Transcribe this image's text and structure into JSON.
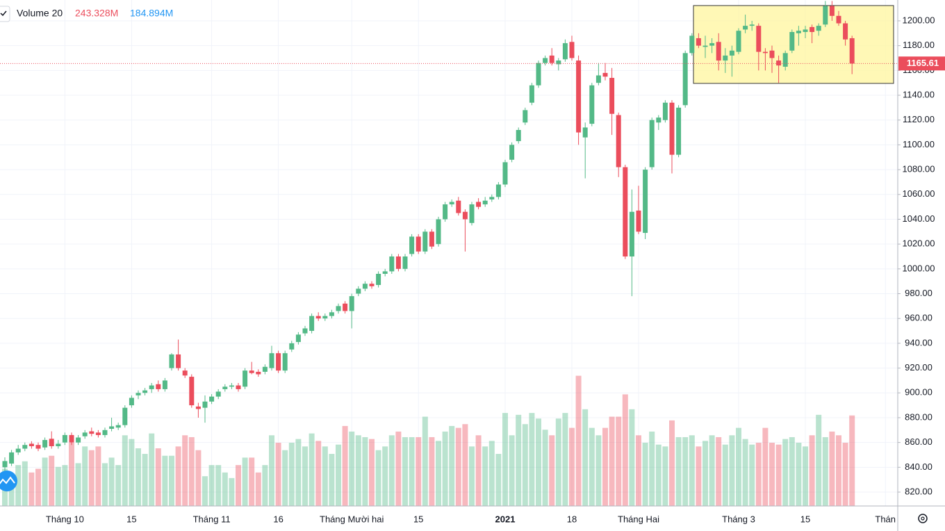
{
  "chart_data": {
    "type": "candlestick",
    "up_color": "#53b987",
    "down_color": "#eb4d5c",
    "volume_up_color": "#53b987",
    "volume_down_color": "#eb4d5c",
    "volume_opacity": 0.4,
    "grid": true,
    "volume_legend": {
      "name": "Volume 20",
      "values": [
        243.328,
        184.894
      ],
      "value_labels": [
        "243.328M",
        "184.894M"
      ]
    },
    "last_price": 1165.61,
    "ylim": [
      808.8,
      1216.8
    ],
    "vlim": [
      0,
      1360
    ],
    "yticks": [
      {
        "value": 820,
        "label": "820.00"
      },
      {
        "value": 840,
        "label": "840.00"
      },
      {
        "value": 860,
        "label": "860.00"
      },
      {
        "value": 880,
        "label": "880.00"
      },
      {
        "value": 900,
        "label": "900.00"
      },
      {
        "value": 920,
        "label": "920.00"
      },
      {
        "value": 940,
        "label": "940.00"
      },
      {
        "value": 960,
        "label": "960.00"
      },
      {
        "value": 980,
        "label": "980.00"
      },
      {
        "value": 1000,
        "label": "1000.00"
      },
      {
        "value": 1020,
        "label": "1020.00"
      },
      {
        "value": 1040,
        "label": "1040.00"
      },
      {
        "value": 1060,
        "label": "1060.00"
      },
      {
        "value": 1080,
        "label": "1080.00"
      },
      {
        "value": 1100,
        "label": "1100.00"
      },
      {
        "value": 1120,
        "label": "1120.00"
      },
      {
        "value": 1140,
        "label": "1140.00"
      },
      {
        "value": 1160,
        "label": "1160.00"
      },
      {
        "value": 1180,
        "label": "1180.00"
      },
      {
        "value": 1200,
        "label": "1200.00"
      }
    ],
    "xticks": [
      {
        "value": 9,
        "label": "Tháng 10"
      },
      {
        "value": 19,
        "label": "15"
      },
      {
        "value": 31,
        "label": "Tháng 11"
      },
      {
        "value": 41,
        "label": "16"
      },
      {
        "value": 52,
        "label": "Tháng Mười hai"
      },
      {
        "value": 62,
        "label": "15"
      },
      {
        "value": 75,
        "label": "2021"
      },
      {
        "value": 85,
        "label": "18"
      },
      {
        "value": 95,
        "label": "Tháng Hai"
      },
      {
        "value": 110,
        "label": "Tháng 3"
      },
      {
        "value": 120,
        "label": "15"
      },
      {
        "value": 132,
        "label": "Thán"
      }
    ],
    "open": [
      840,
      843,
      852,
      855,
      859,
      858,
      856,
      863,
      857,
      860,
      866,
      860,
      865,
      869,
      868,
      866,
      871,
      872,
      874,
      890,
      898,
      900,
      903,
      907,
      903,
      920,
      931,
      918,
      913,
      889,
      888,
      893,
      897,
      903,
      905,
      906,
      905,
      918,
      917,
      917,
      920,
      932,
      918,
      935,
      941,
      948,
      950,
      962,
      960,
      962,
      966,
      972,
      966,
      980,
      984,
      988,
      987,
      996,
      998,
      1010,
      1000,
      1012,
      1026,
      1014,
      1030,
      1020,
      1040,
      1052,
      1055,
      1046,
      1037,
      1054,
      1052,
      1056,
      1058,
      1068,
      1088,
      1103,
      1118,
      1134,
      1148,
      1166,
      1172,
      1165,
      1169,
      1183,
      1168,
      1106,
      1117,
      1150,
      1158,
      1154,
      1124,
      1082,
      1010,
      1047,
      1029,
      1082,
      1118,
      1120,
      1134,
      1092,
      1132,
      1174,
      1186,
      1179,
      1180,
      1183,
      1168,
      1172,
      1175,
      1193,
      1196,
      1196,
      1175,
      1176,
      1168,
      1163,
      1176,
      1190,
      1191,
      1195,
      1192,
      1197,
      1212,
      1204,
      1198,
      1186
    ],
    "high": [
      848,
      854,
      858,
      860,
      861,
      860,
      864,
      869,
      862,
      868,
      868,
      866,
      870,
      872,
      870,
      872,
      880,
      876,
      890,
      898,
      902,
      904,
      908,
      910,
      912,
      932,
      943,
      920,
      915,
      892,
      898,
      899,
      903,
      907,
      908,
      908,
      920,
      925,
      919,
      923,
      938,
      934,
      934,
      942,
      949,
      954,
      964,
      965,
      964,
      967,
      972,
      974,
      980,
      986,
      990,
      990,
      998,
      1000,
      1012,
      1012,
      1012,
      1028,
      1028,
      1032,
      1032,
      1042,
      1054,
      1056,
      1058,
      1048,
      1054,
      1057,
      1058,
      1060,
      1070,
      1088,
      1102,
      1114,
      1130,
      1150,
      1168,
      1172,
      1178,
      1170,
      1185,
      1188,
      1172,
      1118,
      1150,
      1166,
      1166,
      1162,
      1126,
      1084,
      1064,
      1067,
      1082,
      1122,
      1124,
      1136,
      1136,
      1132,
      1176,
      1190,
      1190,
      1188,
      1186,
      1190,
      1178,
      1180,
      1194,
      1205,
      1200,
      1198,
      1178,
      1180,
      1172,
      1176,
      1193,
      1196,
      1196,
      1197,
      1198,
      1216,
      1216,
      1208,
      1200,
      1188
    ],
    "low": [
      836,
      841,
      850,
      853,
      855,
      853,
      854,
      855,
      855,
      858,
      858,
      858,
      863,
      865,
      864,
      864,
      869,
      870,
      872,
      888,
      895,
      898,
      900,
      901,
      901,
      918,
      918,
      912,
      888,
      880,
      876,
      891,
      895,
      901,
      903,
      901,
      903,
      915,
      913,
      915,
      918,
      916,
      916,
      933,
      939,
      946,
      948,
      958,
      958,
      960,
      964,
      964,
      952,
      978,
      982,
      984,
      985,
      994,
      996,
      998,
      998,
      1010,
      1012,
      1012,
      1016,
      1018,
      1038,
      1050,
      1043,
      1014,
      1035,
      1048,
      1050,
      1054,
      1056,
      1066,
      1086,
      1101,
      1116,
      1132,
      1146,
      1164,
      1164,
      1160,
      1167,
      1168,
      1100,
      1073,
      1115,
      1148,
      1152,
      1108,
      1074,
      1008,
      978,
      1028,
      1024,
      1080,
      1112,
      1118,
      1077,
      1090,
      1130,
      1172,
      1178,
      1170,
      1174,
      1160,
      1158,
      1155,
      1173,
      1190,
      1192,
      1160,
      1160,
      1158,
      1150,
      1160,
      1174,
      1180,
      1186,
      1182,
      1188,
      1195,
      1200,
      1196,
      1180,
      1157
    ],
    "close": [
      845,
      852,
      855,
      858,
      857,
      855,
      862,
      857,
      859,
      866,
      860,
      864,
      868,
      867,
      866,
      870,
      873,
      874,
      888,
      896,
      900,
      902,
      906,
      903,
      910,
      931,
      920,
      914,
      890,
      887,
      893,
      897,
      901,
      905,
      906,
      903,
      918,
      916,
      915,
      921,
      932,
      918,
      932,
      940,
      947,
      952,
      962,
      960,
      962,
      965,
      970,
      966,
      978,
      984,
      988,
      986,
      996,
      998,
      1010,
      1000,
      1010,
      1026,
      1014,
      1030,
      1018,
      1040,
      1052,
      1054,
      1045,
      1040,
      1052,
      1050,
      1055,
      1058,
      1068,
      1086,
      1100,
      1112,
      1128,
      1148,
      1166,
      1170,
      1166,
      1168,
      1182,
      1170,
      1110,
      1114,
      1148,
      1156,
      1155,
      1125,
      1082,
      1010,
      1046,
      1030,
      1080,
      1120,
      1122,
      1134,
      1092,
      1130,
      1174,
      1188,
      1180,
      1180,
      1182,
      1168,
      1172,
      1176,
      1192,
      1196,
      1197,
      1175,
      1174,
      1170,
      1164,
      1174,
      1191,
      1192,
      1193,
      1191,
      1196,
      1212,
      1204,
      1198,
      1185,
      1165.61
    ],
    "volume": [
      100,
      75,
      110,
      120,
      90,
      100,
      130,
      135,
      105,
      110,
      170,
      115,
      160,
      150,
      160,
      115,
      130,
      110,
      190,
      180,
      155,
      140,
      195,
      155,
      135,
      135,
      160,
      190,
      185,
      150,
      80,
      110,
      110,
      90,
      75,
      110,
      130,
      130,
      90,
      110,
      190,
      170,
      150,
      170,
      180,
      160,
      195,
      175,
      160,
      140,
      165,
      215,
      200,
      190,
      185,
      180,
      150,
      160,
      190,
      200,
      185,
      185,
      185,
      240,
      185,
      175,
      200,
      215,
      210,
      220,
      160,
      190,
      160,
      175,
      140,
      250,
      190,
      245,
      220,
      250,
      235,
      205,
      190,
      235,
      250,
      210,
      350,
      260,
      210,
      190,
      210,
      240,
      240,
      300,
      260,
      190,
      170,
      200,
      165,
      160,
      230,
      185,
      185,
      190,
      160,
      175,
      190,
      185,
      165,
      190,
      210,
      180,
      165,
      170,
      210,
      170,
      165,
      180,
      185,
      170,
      160,
      190,
      245,
      185,
      200,
      190,
      170,
      243.328
    ]
  }
}
